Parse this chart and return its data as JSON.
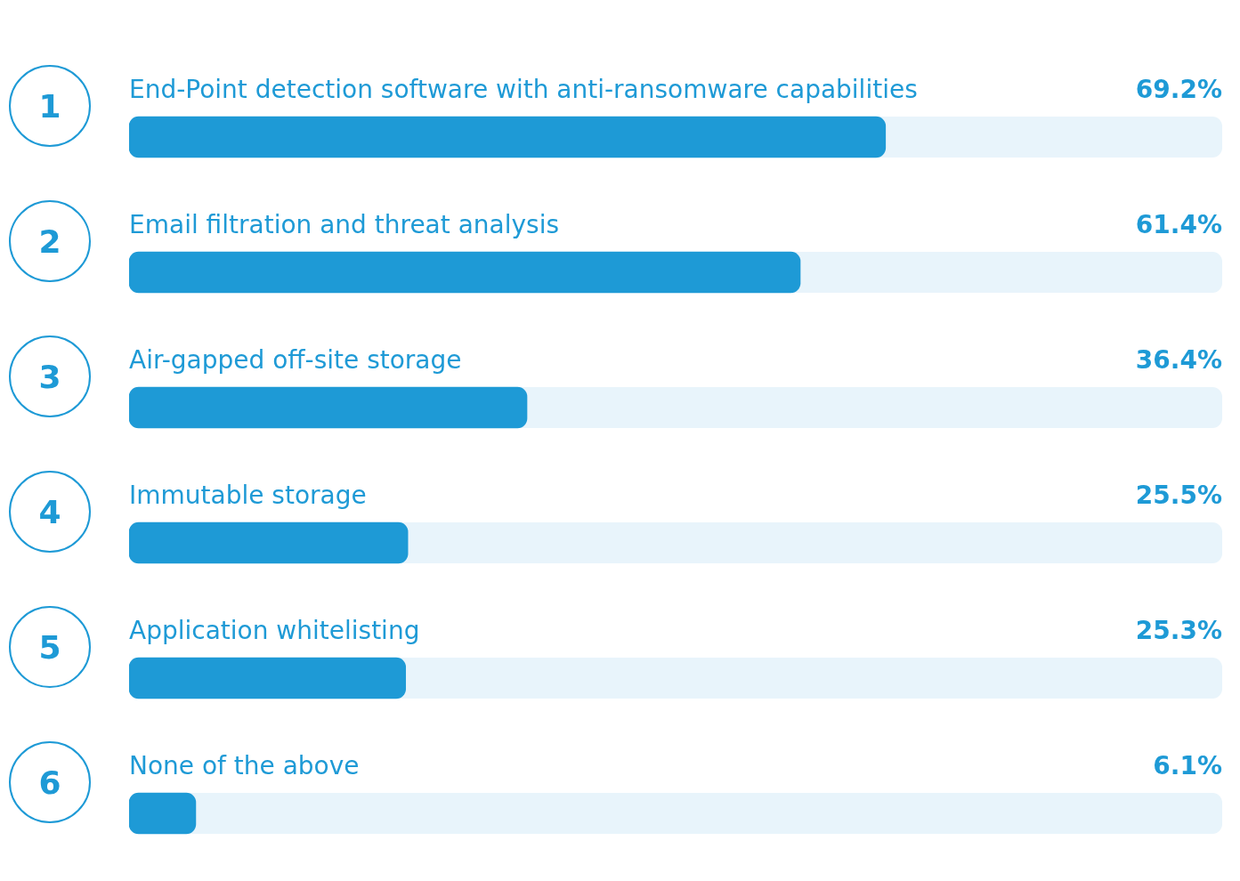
{
  "chart_data": {
    "type": "bar",
    "orientation": "horizontal",
    "categories": [
      "End-Point detection software with anti-ransomware capabilities",
      "Email filtration and threat analysis",
      "Air-gapped off-site storage",
      "Immutable storage",
      "Application whitelisting",
      "None of the above"
    ],
    "values": [
      69.2,
      61.4,
      36.4,
      25.5,
      25.3,
      6.1
    ],
    "value_labels": [
      "69.2%",
      "61.4%",
      "36.4%",
      "25.5%",
      "25.3%",
      "6.1%"
    ],
    "color": "#1e9ad6",
    "xlim": [
      0,
      100
    ],
    "tick_labels": false,
    "grid": false,
    "legend": false,
    "annotations": [
      "1",
      "2",
      "3",
      "4",
      "5",
      "6"
    ]
  }
}
